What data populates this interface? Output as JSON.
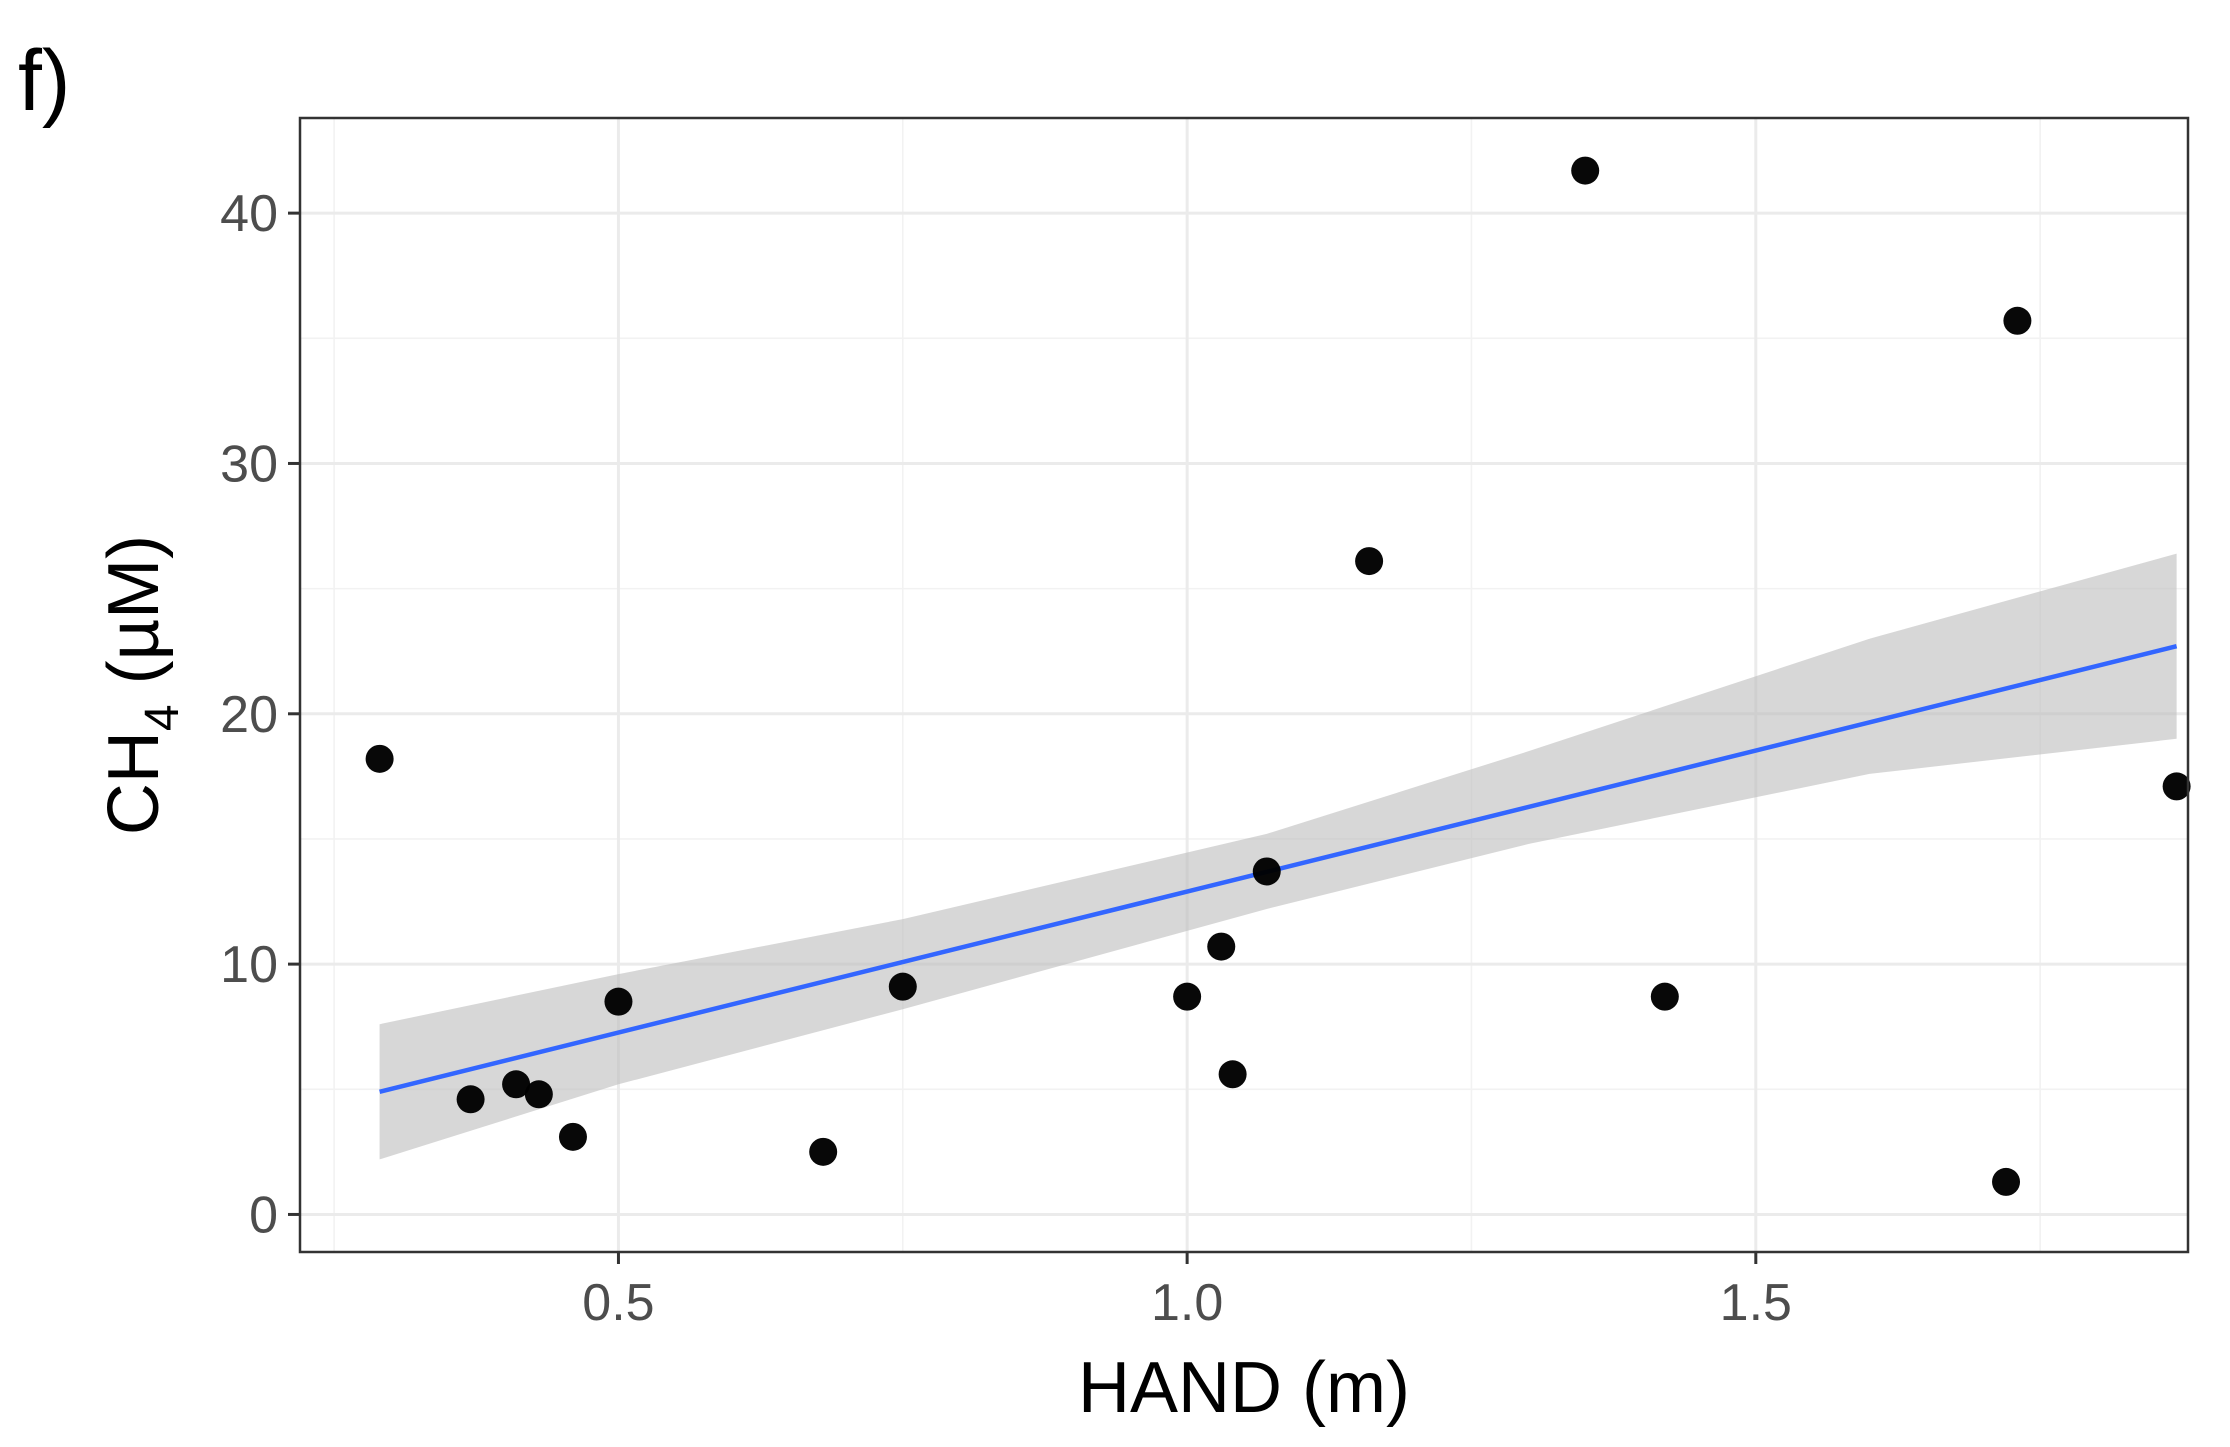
{
  "panel_label": "f)",
  "colors": {
    "points": "#000000",
    "fit_line": "#3366ff",
    "confidence_band": "#bebebe",
    "grid": "#ebebeb",
    "border": "#333333",
    "tick_text": "#4d4d4d"
  },
  "chart_data": {
    "type": "scatter",
    "xlabel": "HAND (m)",
    "ylabel": {
      "main": "CH",
      "subscript": "4",
      "unit": " (µM)"
    },
    "xlim": [
      0.22,
      1.88
    ],
    "ylim": [
      -1.5,
      43.8
    ],
    "x_ticks": [
      0.5,
      1.0,
      1.5
    ],
    "x_tick_labels": [
      "0.5",
      "1.0",
      "1.5"
    ],
    "y_ticks": [
      0,
      10,
      20,
      30,
      40
    ],
    "y_tick_labels": [
      "0",
      "10",
      "20",
      "30",
      "40"
    ],
    "grid": true,
    "points": [
      {
        "x": 0.29,
        "y": 18.2
      },
      {
        "x": 0.37,
        "y": 4.6
      },
      {
        "x": 0.41,
        "y": 5.2
      },
      {
        "x": 0.43,
        "y": 4.8
      },
      {
        "x": 0.46,
        "y": 3.1
      },
      {
        "x": 0.5,
        "y": 8.5
      },
      {
        "x": 0.68,
        "y": 2.5
      },
      {
        "x": 0.75,
        "y": 9.1
      },
      {
        "x": 1.0,
        "y": 8.7
      },
      {
        "x": 1.03,
        "y": 10.7
      },
      {
        "x": 1.04,
        "y": 5.6
      },
      {
        "x": 1.07,
        "y": 13.7
      },
      {
        "x": 1.16,
        "y": 26.1
      },
      {
        "x": 1.35,
        "y": 41.7
      },
      {
        "x": 1.42,
        "y": 8.7
      },
      {
        "x": 1.72,
        "y": 1.3
      },
      {
        "x": 1.73,
        "y": 35.7
      },
      {
        "x": 1.87,
        "y": 17.1
      }
    ],
    "fit_line": {
      "x": [
        0.29,
        1.87
      ],
      "y": [
        4.9,
        22.7
      ]
    },
    "confidence_band": {
      "x": [
        0.29,
        0.5,
        0.75,
        1.07,
        1.3,
        1.6,
        1.87
      ],
      "upper": [
        7.6,
        9.6,
        11.8,
        15.2,
        18.5,
        23.0,
        26.4
      ],
      "lower": [
        2.2,
        5.2,
        8.2,
        12.2,
        14.8,
        17.6,
        19.0
      ]
    }
  }
}
